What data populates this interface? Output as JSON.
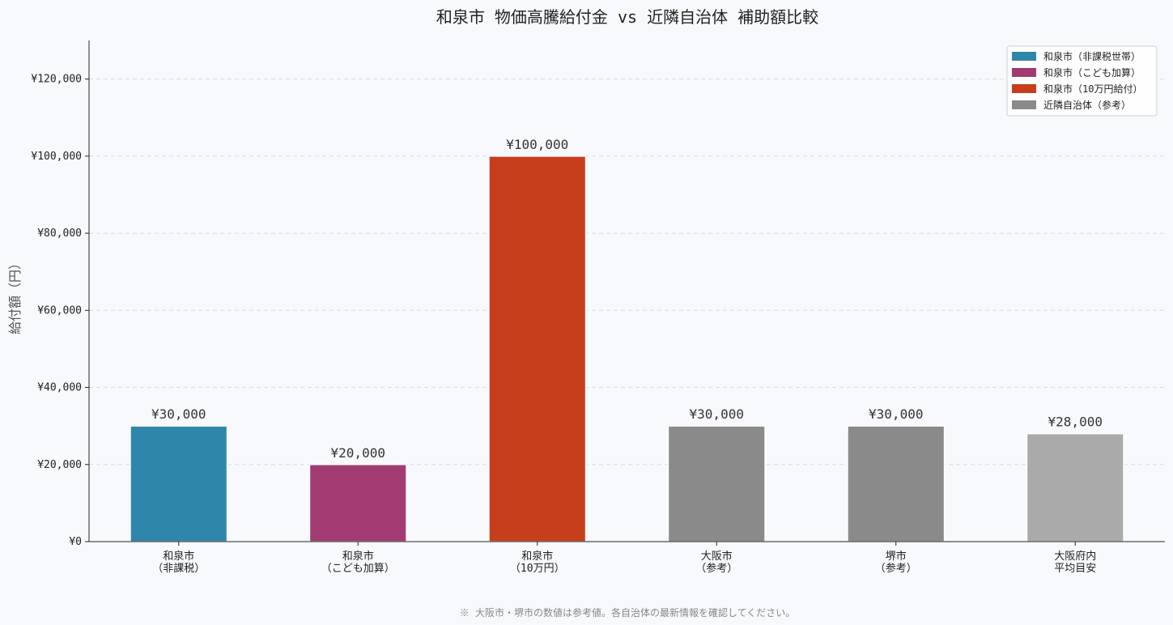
{
  "chart_data": {
    "type": "bar",
    "title": "和泉市 物価高騰給付金 vs 近隣自治体 補助額比較",
    "xlabel": "",
    "ylabel": "給付額（円）",
    "ylim": [
      0,
      130000
    ],
    "yticks": [
      0,
      20000,
      40000,
      60000,
      80000,
      100000,
      120000
    ],
    "ytick_labels": [
      "¥0",
      "¥20,000",
      "¥40,000",
      "¥60,000",
      "¥80,000",
      "¥100,000",
      "¥120,000"
    ],
    "grid": "y-dashed",
    "legend_position": "top-right",
    "categories": [
      [
        "和泉市",
        "（非課税）"
      ],
      [
        "和泉市",
        "（こども加算）"
      ],
      [
        "和泉市",
        "（10万円）"
      ],
      [
        "大阪市",
        "（参考）"
      ],
      [
        "堺市",
        "（参考）"
      ],
      [
        "大阪府内",
        "平均目安"
      ]
    ],
    "values": [
      30000,
      20000,
      100000,
      30000,
      30000,
      28000
    ],
    "value_labels": [
      "¥30,000",
      "¥20,000",
      "¥100,000",
      "¥30,000",
      "¥30,000",
      "¥28,000"
    ],
    "colors": [
      "#2e86ab",
      "#a23b72",
      "#c73e1d",
      "#8a8a8a",
      "#8a8a8a",
      "#aaaaaa"
    ],
    "legend": [
      {
        "label": "和泉市（非課税世帯）",
        "color": "#2e86ab"
      },
      {
        "label": "和泉市（こども加算）",
        "color": "#a23b72"
      },
      {
        "label": "和泉市（10万円給付）",
        "color": "#c73e1d"
      },
      {
        "label": "近隣自治体（参考）",
        "color": "#8a8a8a"
      }
    ]
  },
  "footnote": "※ 大阪市・堺市の数値は参考値。各自治体の最新情報を確認してください。"
}
